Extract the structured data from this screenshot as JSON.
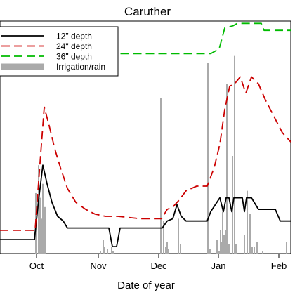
{
  "chart_data": {
    "type": "line",
    "title": "Caruther",
    "xlabel": "Date of year",
    "ylabel": "",
    "x_ticks": [
      {
        "label": "Oct",
        "x": 52
      },
      {
        "label": "Nov",
        "x": 140
      },
      {
        "label": "Dec",
        "x": 226
      },
      {
        "label": "Jan",
        "x": 311
      },
      {
        "label": "Feb",
        "x": 397
      }
    ],
    "xlim": [
      0,
      414
    ],
    "ylim": [
      0,
      100
    ],
    "grid": false,
    "legend_position": "top-left",
    "series": [
      {
        "name": "12\" depth",
        "color": "#000000",
        "style": "solid",
        "points": [
          [
            0,
            6
          ],
          [
            49,
            6
          ],
          [
            55,
            23
          ],
          [
            61,
            38
          ],
          [
            67,
            30
          ],
          [
            74,
            22
          ],
          [
            82,
            16
          ],
          [
            90,
            14
          ],
          [
            96,
            11
          ],
          [
            155,
            11
          ],
          [
            160,
            3
          ],
          [
            166,
            3
          ],
          [
            171,
            11
          ],
          [
            231,
            11
          ],
          [
            238,
            14
          ],
          [
            246,
            15
          ],
          [
            252,
            21
          ],
          [
            258,
            16
          ],
          [
            265,
            14
          ],
          [
            295,
            14
          ],
          [
            300,
            18
          ],
          [
            313,
            24
          ],
          [
            318,
            18
          ],
          [
            322,
            24
          ],
          [
            326,
            24
          ],
          [
            330,
            18
          ],
          [
            333,
            24
          ],
          [
            345,
            24
          ],
          [
            348,
            18
          ],
          [
            351,
            24
          ],
          [
            358,
            24
          ],
          [
            368,
            19
          ],
          [
            392,
            19
          ],
          [
            399,
            14
          ],
          [
            414,
            14
          ]
        ]
      },
      {
        "name": "24\" depth",
        "color": "#cc0000",
        "style": "dashed",
        "points": [
          [
            0,
            10
          ],
          [
            38,
            10
          ],
          [
            50,
            10
          ],
          [
            56,
            35
          ],
          [
            63,
            63
          ],
          [
            70,
            55
          ],
          [
            78,
            45
          ],
          [
            86,
            37
          ],
          [
            96,
            28
          ],
          [
            108,
            22
          ],
          [
            122,
            19
          ],
          [
            135,
            17
          ],
          [
            150,
            16
          ],
          [
            168,
            16
          ],
          [
            200,
            15
          ],
          [
            230,
            15
          ],
          [
            238,
            19
          ],
          [
            246,
            20
          ],
          [
            255,
            23
          ],
          [
            265,
            27
          ],
          [
            280,
            29
          ],
          [
            295,
            29
          ],
          [
            305,
            37
          ],
          [
            313,
            47
          ],
          [
            320,
            62
          ],
          [
            327,
            72
          ],
          [
            334,
            73
          ],
          [
            342,
            76
          ],
          [
            350,
            69
          ],
          [
            358,
            76
          ],
          [
            368,
            73
          ],
          [
            378,
            66
          ],
          [
            390,
            59
          ],
          [
            402,
            52
          ],
          [
            414,
            48
          ]
        ]
      },
      {
        "name": "36\" depth",
        "color": "#00bb00",
        "style": "dashed",
        "points": [
          [
            0,
            86
          ],
          [
            50,
            86
          ],
          [
            60,
            84
          ],
          [
            72,
            91
          ],
          [
            82,
            91
          ],
          [
            90,
            86
          ],
          [
            95,
            86
          ],
          [
            300,
            86
          ],
          [
            312,
            88
          ],
          [
            320,
            97
          ],
          [
            332,
            98
          ],
          [
            338,
            99
          ],
          [
            355,
            99
          ],
          [
            372,
            99
          ],
          [
            376,
            96
          ],
          [
            414,
            96
          ]
        ]
      }
    ],
    "bars": {
      "name": "Irrigation/rain",
      "color": "#aaaaaa",
      "items": [
        [
          51,
          26
        ],
        [
          55,
          38
        ],
        [
          57,
          24
        ],
        [
          59,
          15
        ],
        [
          61,
          30
        ],
        [
          62,
          8
        ],
        [
          64,
          20
        ],
        [
          143,
          1
        ],
        [
          147,
          6
        ],
        [
          148,
          3
        ],
        [
          153,
          2
        ],
        [
          159,
          3
        ],
        [
          161,
          1
        ],
        [
          229,
          67
        ],
        [
          233,
          14
        ],
        [
          236,
          3
        ],
        [
          238,
          5
        ],
        [
          240,
          2
        ],
        [
          254,
          15
        ],
        [
          257,
          4
        ],
        [
          296,
          82
        ],
        [
          299,
          2
        ],
        [
          308,
          6
        ],
        [
          310,
          6
        ],
        [
          312,
          1
        ],
        [
          314,
          10
        ],
        [
          316,
          5
        ],
        [
          317,
          18
        ],
        [
          319,
          8
        ],
        [
          321,
          10
        ],
        [
          323,
          73
        ],
        [
          326,
          4
        ],
        [
          327,
          3
        ],
        [
          331,
          42
        ],
        [
          334,
          85
        ],
        [
          336,
          4
        ],
        [
          348,
          8
        ],
        [
          352,
          27
        ],
        [
          356,
          17
        ],
        [
          359,
          3
        ],
        [
          362,
          3
        ],
        [
          366,
          5
        ],
        [
          374,
          1
        ],
        [
          408,
          5
        ]
      ]
    },
    "legend": [
      {
        "label": "12\" depth",
        "color": "#000000",
        "style": "solid"
      },
      {
        "label": "24\" depth",
        "color": "#cc0000",
        "style": "dashed"
      },
      {
        "label": "36\" depth",
        "color": "#00bb00",
        "style": "dashed"
      },
      {
        "label": "Irrigation/rain",
        "color": "#aaaaaa",
        "style": "bar"
      }
    ]
  }
}
